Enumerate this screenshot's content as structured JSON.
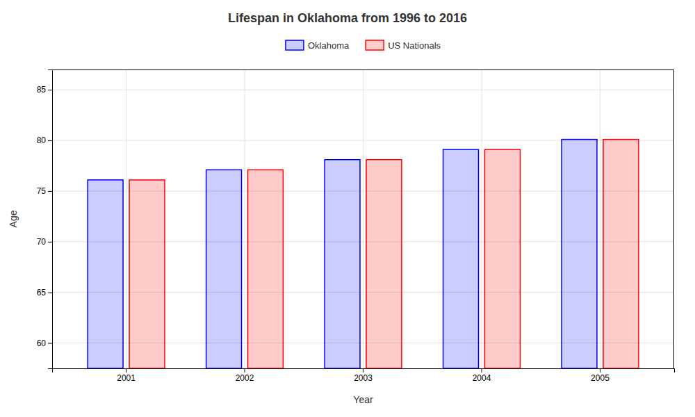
{
  "chart_data": {
    "type": "bar",
    "title": "Lifespan in Oklahoma from 1996 to 2016",
    "xlabel": "Year",
    "ylabel": "Age",
    "categories": [
      "2001",
      "2002",
      "2003",
      "2004",
      "2005"
    ],
    "series": [
      {
        "name": "Oklahoma",
        "color": "#0000ff",
        "values": [
          76.1,
          77.1,
          78.1,
          79.1,
          80.1
        ]
      },
      {
        "name": "US Nationals",
        "color": "#ff0000",
        "values": [
          76.1,
          77.1,
          78.1,
          79.1,
          80.1
        ]
      }
    ],
    "ylim": [
      57.5,
      87.0
    ],
    "yticks": [
      60,
      65,
      70,
      75,
      80,
      85
    ],
    "grid": true,
    "legend": "top"
  }
}
